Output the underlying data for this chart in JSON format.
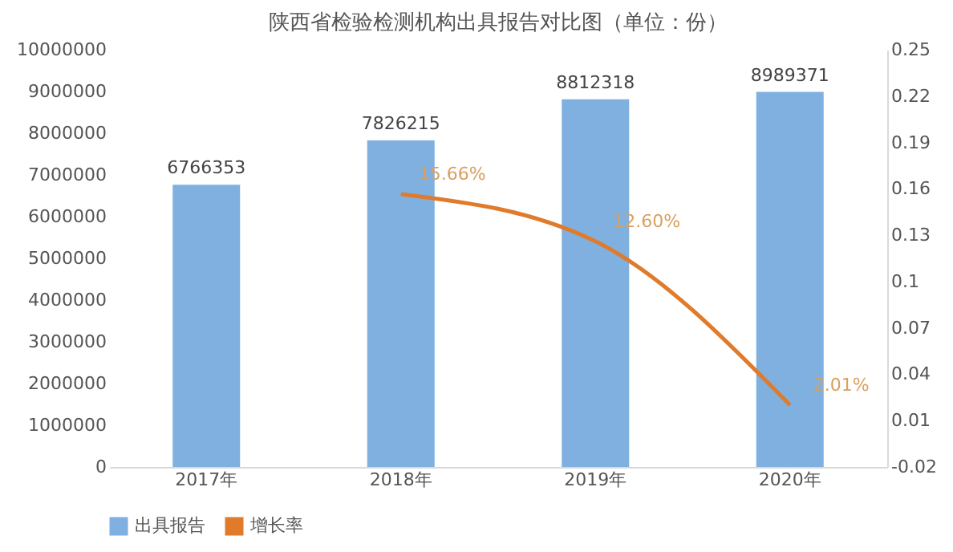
{
  "chart_data": {
    "type": "bar",
    "title": "陕西省检验检测机构出具报告对比图（单位：份）",
    "categories": [
      "2017年",
      "2018年",
      "2019年",
      "2020年"
    ],
    "series": [
      {
        "name": "出具报告",
        "type": "bar",
        "color": "#7fb0e0",
        "values": [
          6766353,
          7826215,
          8812318,
          8989371
        ],
        "value_labels": [
          "6766353",
          "7826215",
          "8812318",
          "8989371"
        ]
      },
      {
        "name": "增长率",
        "type": "line",
        "axis": "y2",
        "color": "#e07b2c",
        "values": [
          null,
          0.1566,
          0.126,
          0.0201
        ],
        "value_labels": [
          null,
          "15.66%",
          "12.60%",
          "2.01%"
        ]
      }
    ],
    "ylim": [
      0,
      10000000
    ],
    "yticks": [
      0,
      1000000,
      2000000,
      3000000,
      4000000,
      5000000,
      6000000,
      7000000,
      8000000,
      9000000,
      10000000
    ],
    "y2lim": [
      -0.02,
      0.25
    ],
    "y2ticks": [
      -0.02,
      0.01,
      0.04,
      0.07,
      0.1,
      0.13,
      0.16,
      0.19,
      0.22,
      0.25
    ],
    "grid": false,
    "legend": "bottom",
    "marker": "none",
    "line_style": "solid"
  }
}
